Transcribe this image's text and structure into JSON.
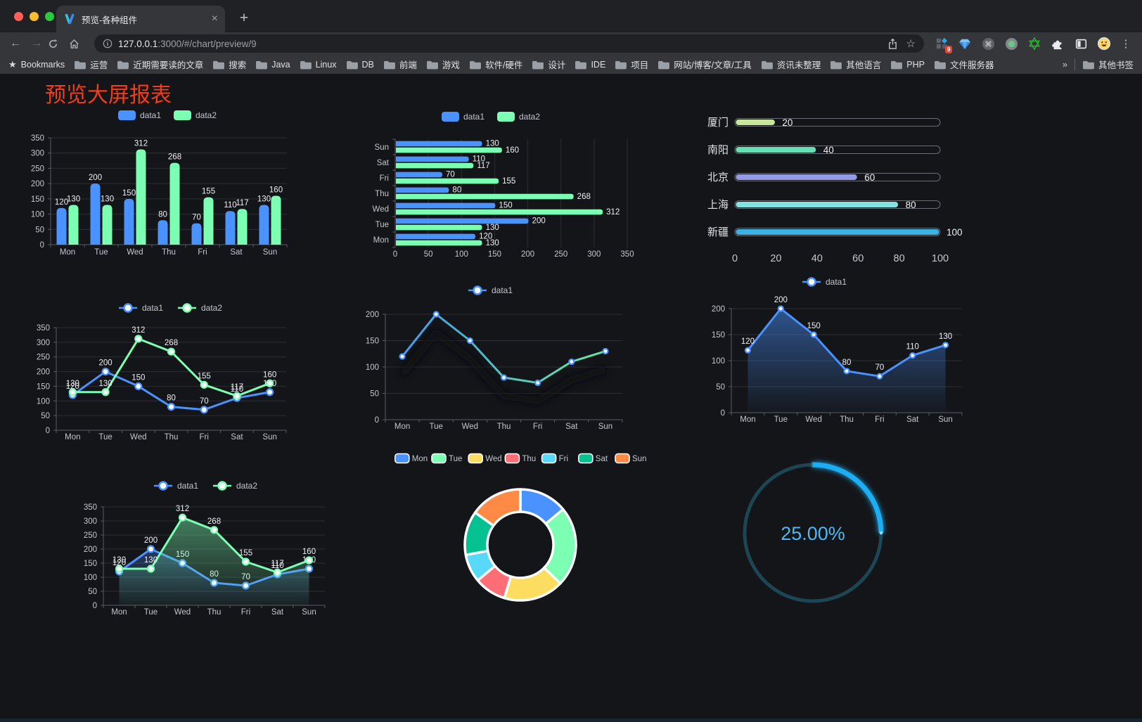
{
  "browser": {
    "traffic_lights": {
      "close": "#ff5f57",
      "minimize": "#febc2e",
      "zoom": "#28c840"
    },
    "tab_title": "预览-各种组件",
    "close_glyph": "×",
    "new_tab_glyph": "+",
    "url_host": "127.0.0.1",
    "url_rest": ":3000/#/chart/preview/9",
    "extension_badge": "9",
    "menu_glyph": "⋮",
    "bookmarks": {
      "star_glyph": "★",
      "label": "Bookmarks",
      "folders": [
        "运营",
        "近期需要读的文章",
        "搜索",
        "Java",
        "Linux",
        "DB",
        "前端",
        "游戏",
        "软件/硬件",
        "设计",
        "IDE",
        "项目",
        "网站/博客/文章/工具",
        "资讯未整理",
        "其他语言",
        "PHP",
        "文件服务器"
      ],
      "overflow_glyph": "»",
      "other_bookmarks": "其他书签"
    }
  },
  "page": {
    "title": "预览大屏报表",
    "title_color": "#f23c1a",
    "background": "#141518"
  },
  "chart_data": [
    {
      "id": "bar-vertical",
      "type": "bar",
      "categories": [
        "Mon",
        "Tue",
        "Wed",
        "Thu",
        "Fri",
        "Sat",
        "Sun"
      ],
      "series": [
        {
          "name": "data1",
          "color": "#4992ff",
          "values": [
            120,
            200,
            150,
            80,
            70,
            110,
            130
          ]
        },
        {
          "name": "data2",
          "color": "#7cffb2",
          "values": [
            130,
            130,
            312,
            268,
            155,
            117,
            160
          ]
        }
      ],
      "ylim": [
        0,
        350
      ],
      "ytick_step": 50,
      "legend_position": "top",
      "grid": true,
      "value_labels": true
    },
    {
      "id": "bar-horizontal",
      "type": "bar",
      "orientation": "horizontal",
      "categories": [
        "Mon",
        "Tue",
        "Wed",
        "Thu",
        "Fri",
        "Sat",
        "Sun"
      ],
      "category_order_on_screen": [
        "Sun",
        "Sat",
        "Fri",
        "Thu",
        "Wed",
        "Tue",
        "Mon"
      ],
      "series": [
        {
          "name": "data1",
          "color": "#4992ff",
          "values": [
            120,
            200,
            150,
            80,
            70,
            110,
            130
          ]
        },
        {
          "name": "data2",
          "color": "#7cffb2",
          "values": [
            130,
            130,
            312,
            268,
            155,
            117,
            160
          ]
        }
      ],
      "xlim": [
        0,
        350
      ],
      "xtick_step": 50,
      "legend_position": "top",
      "grid": true,
      "value_labels": true
    },
    {
      "id": "progress-bars",
      "type": "bar",
      "orientation": "horizontal-progress",
      "items": [
        {
          "label": "厦门",
          "value": 20,
          "color": "#c9e79a"
        },
        {
          "label": "南阳",
          "value": 40,
          "color": "#65e0b5"
        },
        {
          "label": "北京",
          "value": 60,
          "color": "#959ae6"
        },
        {
          "label": "上海",
          "value": 80,
          "color": "#83e3e0"
        },
        {
          "label": "新疆",
          "value": 100,
          "color": "#3bb2e3"
        }
      ],
      "xlim": [
        0,
        100
      ],
      "xticks": [
        0,
        20,
        40,
        60,
        80,
        100
      ]
    },
    {
      "id": "line-two",
      "type": "line",
      "categories": [
        "Mon",
        "Tue",
        "Wed",
        "Thu",
        "Fri",
        "Sat",
        "Sun"
      ],
      "series": [
        {
          "name": "data1",
          "color": "#4992ff",
          "values": [
            120,
            200,
            150,
            80,
            70,
            110,
            130
          ]
        },
        {
          "name": "data2",
          "color": "#7cffb2",
          "values": [
            130,
            130,
            312,
            268,
            155,
            117,
            160
          ]
        }
      ],
      "ylim": [
        0,
        350
      ],
      "ytick_step": 50,
      "legend_position": "top",
      "value_labels": true
    },
    {
      "id": "line-gradient",
      "type": "line",
      "categories": [
        "Mon",
        "Tue",
        "Wed",
        "Thu",
        "Fri",
        "Sat",
        "Sun"
      ],
      "series": [
        {
          "name": "data1",
          "color": "#4992ff",
          "color_gradient": [
            "#4090f7",
            "#52c5c2",
            "#6ceca1"
          ],
          "values": [
            120,
            200,
            150,
            80,
            70,
            110,
            130
          ]
        }
      ],
      "ylim": [
        0,
        200
      ],
      "ytick_step": 50,
      "shadow": true,
      "value_labels": false
    },
    {
      "id": "area-single",
      "type": "area",
      "categories": [
        "Mon",
        "Tue",
        "Wed",
        "Thu",
        "Fri",
        "Sat",
        "Sun"
      ],
      "series": [
        {
          "name": "data1",
          "color": "#4992ff",
          "values": [
            120,
            200,
            150,
            80,
            70,
            110,
            130
          ],
          "area": true
        }
      ],
      "ylim": [
        0,
        200
      ],
      "ytick_step": 50,
      "value_labels": true
    },
    {
      "id": "area-two",
      "type": "area",
      "categories": [
        "Mon",
        "Tue",
        "Wed",
        "Thu",
        "Fri",
        "Sat",
        "Sun"
      ],
      "series": [
        {
          "name": "data1",
          "color": "#4992ff",
          "values": [
            120,
            200,
            150,
            80,
            70,
            110,
            130
          ],
          "area": true
        },
        {
          "name": "data2",
          "color": "#7cffb2",
          "values": [
            130,
            130,
            312,
            268,
            155,
            117,
            160
          ],
          "area": true
        }
      ],
      "ylim": [
        0,
        350
      ],
      "ytick_step": 50,
      "value_labels": true
    },
    {
      "id": "donut",
      "type": "pie",
      "categories": [
        "Mon",
        "Tue",
        "Wed",
        "Thu",
        "Fri",
        "Sat",
        "Sun"
      ],
      "values": [
        120,
        200,
        150,
        80,
        70,
        110,
        130
      ],
      "colors": [
        "#4992ff",
        "#7cffb2",
        "#fddd60",
        "#ff6e76",
        "#58d9f9",
        "#05c091",
        "#ff8a45"
      ],
      "inner_radius_ratio": 0.6,
      "border_color": "#ffffff",
      "legend_position": "top"
    },
    {
      "id": "gauge",
      "type": "gauge",
      "value": 25,
      "max": 100,
      "label": "25.00%",
      "arc_color": "#1fadf2",
      "track_color": "#1c4653",
      "text_color": "#4db9f3"
    }
  ]
}
